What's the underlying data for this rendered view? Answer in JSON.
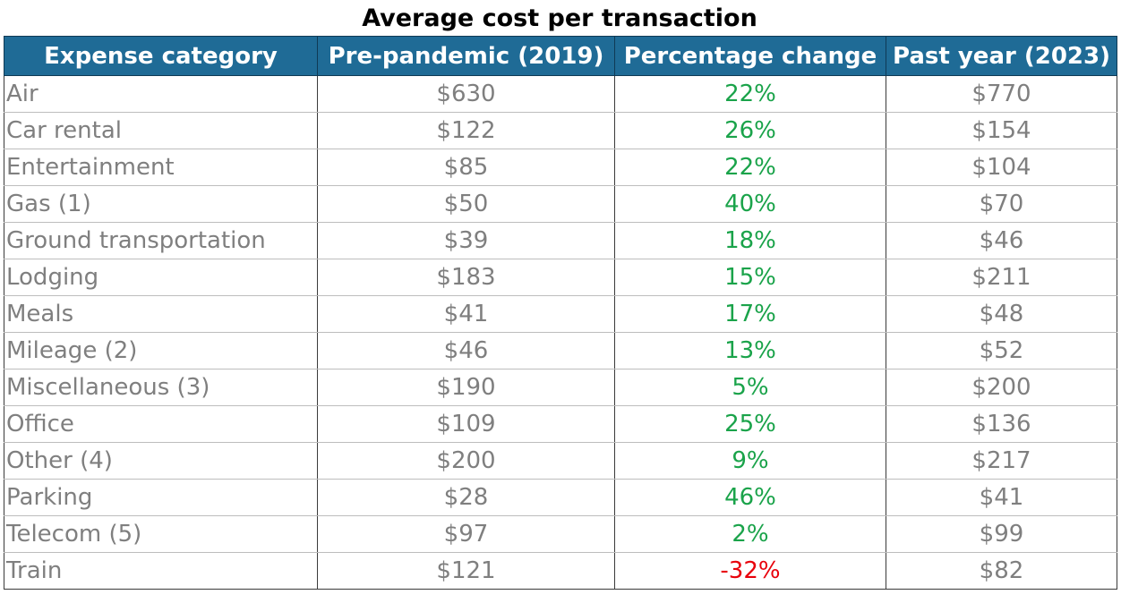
{
  "chart_data": {
    "type": "table",
    "title": "Average cost per transaction",
    "columns": [
      "Expense category",
      "Pre-pandemic (2019)",
      "Percentage change",
      "Past year (2023)"
    ],
    "rows": [
      {
        "category": "Air",
        "pre": "$630",
        "change": "22%",
        "past": "$770"
      },
      {
        "category": "Car rental",
        "pre": "$122",
        "change": "26%",
        "past": "$154"
      },
      {
        "category": "Entertainment",
        "pre": "$85",
        "change": "22%",
        "past": "$104"
      },
      {
        "category": "Gas (1)",
        "pre": "$50",
        "change": "40%",
        "past": "$70"
      },
      {
        "category": "Ground transportation",
        "pre": "$39",
        "change": "18%",
        "past": "$46"
      },
      {
        "category": "Lodging",
        "pre": "$183",
        "change": "15%",
        "past": "$211"
      },
      {
        "category": "Meals",
        "pre": "$41",
        "change": "17%",
        "past": "$48"
      },
      {
        "category": "Mileage (2)",
        "pre": "$46",
        "change": "13%",
        "past": "$52"
      },
      {
        "category": "Miscellaneous (3)",
        "pre": "$190",
        "change": "5%",
        "past": "$200"
      },
      {
        "category": "Office",
        "pre": "$109",
        "change": "25%",
        "past": "$136"
      },
      {
        "category": "Other (4)",
        "pre": "$200",
        "change": "9%",
        "past": "$217"
      },
      {
        "category": "Parking",
        "pre": "$28",
        "change": "46%",
        "past": "$41"
      },
      {
        "category": "Telecom (5)",
        "pre": "$97",
        "change": "2%",
        "past": "$99"
      },
      {
        "category": "Train",
        "pre": "$121",
        "change": "-32%",
        "past": "$82"
      }
    ]
  },
  "colors": {
    "header_bg": "#1f6b96",
    "header_text": "#ffffff",
    "body_text": "#7f7f7f",
    "positive_change": "#1aa34a",
    "negative_change": "#e8000b"
  }
}
